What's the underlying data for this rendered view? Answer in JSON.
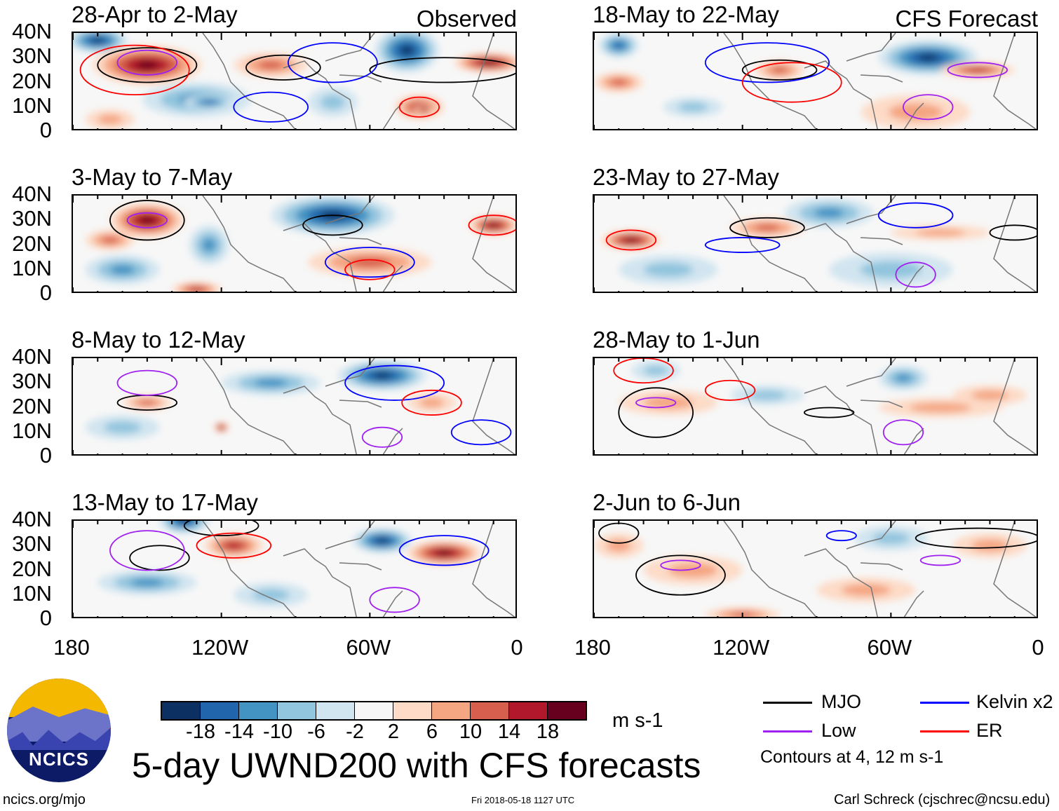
{
  "labels": {
    "observed": "Observed",
    "forecast": "CFS Forecast"
  },
  "y_ticks": [
    "40N",
    "30N",
    "20N",
    "10N",
    "0"
  ],
  "x_ticks": [
    "180",
    "120W",
    "60W",
    "0"
  ],
  "colorbar": {
    "colors": [
      "#0b3061",
      "#2166ac",
      "#4393c3",
      "#92c5de",
      "#d1e5f0",
      "#f7f7f7",
      "#fddbc7",
      "#f4a582",
      "#d6604d",
      "#b2182b",
      "#67001f"
    ],
    "labels": [
      "-18",
      "-14",
      "-10",
      "-6",
      "-2",
      "2",
      "6",
      "10",
      "14",
      "18"
    ],
    "units": "m s-1"
  },
  "legend": {
    "items": [
      {
        "label": "MJO",
        "color": "#000000"
      },
      {
        "label": "Kelvin x2",
        "color": "#0000ff"
      },
      {
        "label": "Low",
        "color": "#a020f0"
      },
      {
        "label": "ER",
        "color": "#ff0000"
      }
    ],
    "note": "Contours at 4, 12 m s-1"
  },
  "title": "5-day UWND200 with CFS forecasts",
  "logo_text": "NCICS",
  "footer": {
    "left": "ncics.org/mjo",
    "center": "Fri 2018-05-18 1127 UTC",
    "right": "Carl Schreck (cjschrec@ncsu.edu)"
  },
  "chart_data": {
    "type": "heatmap",
    "variable": "200-hPa zonal wind anomaly",
    "units": "m s-1",
    "xlim": [
      180,
      0
    ],
    "ylim": [
      0,
      40
    ],
    "panels": [
      {
        "title": "28-Apr to 2-May",
        "kind": "observed",
        "features": [
          [
            170,
            37,
            12,
            5,
            -18
          ],
          [
            150,
            27,
            22,
            8,
            18
          ],
          [
            130,
            13,
            22,
            7,
            -10
          ],
          [
            125,
            12,
            10,
            3,
            -14
          ],
          [
            100,
            27,
            15,
            5,
            10
          ],
          [
            45,
            33,
            13,
            9,
            -18
          ],
          [
            40,
            10,
            10,
            5,
            14
          ],
          [
            38,
            9,
            4,
            2,
            18
          ],
          [
            12,
            28,
            14,
            4,
            18
          ],
          [
            75,
            12,
            10,
            6,
            -6
          ],
          [
            165,
            5,
            10,
            4,
            6
          ]
        ],
        "contours": [
          [
            150,
            27,
            20,
            7,
            "MJO"
          ],
          [
            95,
            26,
            15,
            5,
            "MJO"
          ],
          [
            30,
            25,
            30,
            5,
            "MJO"
          ],
          [
            100,
            10,
            15,
            6,
            "Kelvin"
          ],
          [
            75,
            28,
            18,
            8,
            "Kelvin"
          ],
          [
            150,
            28,
            12,
            5,
            "Low"
          ],
          [
            40,
            10,
            8,
            4,
            "ER"
          ],
          [
            155,
            25,
            22,
            10,
            "ER"
          ]
        ]
      },
      {
        "title": "18-May to 22-May",
        "kind": "forecast",
        "features": [
          [
            170,
            35,
            8,
            5,
            -14
          ],
          [
            45,
            30,
            20,
            7,
            -18
          ],
          [
            25,
            25,
            15,
            3,
            14
          ],
          [
            105,
            25,
            10,
            4,
            10
          ],
          [
            170,
            20,
            10,
            4,
            10
          ],
          [
            50,
            8,
            22,
            7,
            6
          ],
          [
            140,
            10,
            12,
            4,
            -6
          ]
        ],
        "contours": [
          [
            105,
            25,
            15,
            4,
            "MJO"
          ],
          [
            25,
            25,
            12,
            3,
            "Low"
          ],
          [
            45,
            10,
            10,
            5,
            "Low"
          ],
          [
            110,
            28,
            25,
            8,
            "Kelvin"
          ],
          [
            100,
            20,
            20,
            8,
            "ER"
          ]
        ]
      },
      {
        "title": "3-May to 7-May",
        "kind": "observed",
        "features": [
          [
            150,
            30,
            15,
            7,
            18
          ],
          [
            165,
            22,
            10,
            4,
            10
          ],
          [
            160,
            10,
            15,
            6,
            -10
          ],
          [
            125,
            20,
            8,
            8,
            -10
          ],
          [
            75,
            32,
            25,
            8,
            -18
          ],
          [
            60,
            13,
            25,
            6,
            10
          ],
          [
            10,
            28,
            10,
            4,
            18
          ],
          [
            130,
            2,
            10,
            3,
            14
          ]
        ],
        "contours": [
          [
            150,
            30,
            15,
            8,
            "MJO"
          ],
          [
            75,
            28,
            12,
            4,
            "MJO"
          ],
          [
            150,
            30,
            8,
            3,
            "Low"
          ],
          [
            60,
            13,
            18,
            6,
            "Kelvin"
          ],
          [
            60,
            10,
            10,
            4,
            "ER"
          ],
          [
            10,
            28,
            10,
            4,
            "ER"
          ]
        ]
      },
      {
        "title": "23-May to 27-May",
        "kind": "forecast",
        "features": [
          [
            165,
            22,
            12,
            4,
            18
          ],
          [
            110,
            27,
            15,
            4,
            10
          ],
          [
            85,
            33,
            18,
            6,
            -10
          ],
          [
            60,
            10,
            25,
            7,
            -6
          ],
          [
            150,
            10,
            20,
            6,
            -6
          ],
          [
            40,
            25,
            20,
            3,
            6
          ]
        ],
        "contours": [
          [
            110,
            27,
            15,
            4,
            "MJO"
          ],
          [
            10,
            25,
            10,
            3,
            "MJO"
          ],
          [
            165,
            22,
            10,
            4,
            "ER"
          ],
          [
            50,
            32,
            15,
            5,
            "Kelvin"
          ],
          [
            120,
            20,
            15,
            3,
            "Kelvin"
          ],
          [
            50,
            8,
            8,
            5,
            "Low"
          ]
        ]
      },
      {
        "title": "8-May to 12-May",
        "kind": "observed",
        "features": [
          [
            55,
            33,
            18,
            6,
            -18
          ],
          [
            100,
            30,
            20,
            5,
            -10
          ],
          [
            150,
            22,
            10,
            3,
            10
          ],
          [
            35,
            22,
            10,
            4,
            6
          ],
          [
            160,
            12,
            15,
            5,
            -6
          ],
          [
            120,
            12,
            3,
            2,
            18
          ]
        ],
        "contours": [
          [
            150,
            22,
            12,
            3,
            "MJO"
          ],
          [
            50,
            30,
            20,
            7,
            "Kelvin"
          ],
          [
            150,
            30,
            12,
            5,
            "Low"
          ],
          [
            55,
            8,
            8,
            4,
            "Low"
          ],
          [
            35,
            22,
            12,
            5,
            "ER"
          ],
          [
            15,
            10,
            12,
            5,
            "Kelvin"
          ]
        ]
      },
      {
        "title": "28-May to 1-Jun",
        "kind": "forecast",
        "features": [
          [
            150,
            22,
            20,
            5,
            6
          ],
          [
            55,
            32,
            10,
            5,
            -10
          ],
          [
            40,
            20,
            25,
            4,
            6
          ],
          [
            110,
            25,
            15,
            4,
            -6
          ],
          [
            155,
            35,
            10,
            4,
            -6
          ],
          [
            20,
            25,
            15,
            4,
            6
          ]
        ],
        "contours": [
          [
            155,
            18,
            15,
            10,
            "MJO"
          ],
          [
            85,
            18,
            10,
            2,
            "MJO"
          ],
          [
            155,
            22,
            8,
            2,
            "Low"
          ],
          [
            55,
            10,
            8,
            5,
            "Low"
          ],
          [
            160,
            35,
            12,
            5,
            "ER"
          ],
          [
            125,
            27,
            10,
            4,
            "ER"
          ]
        ]
      },
      {
        "title": "13-May to 17-May",
        "kind": "observed",
        "features": [
          [
            135,
            40,
            10,
            5,
            -18
          ],
          [
            115,
            30,
            12,
            5,
            14
          ],
          [
            55,
            32,
            12,
            5,
            -18
          ],
          [
            30,
            27,
            15,
            5,
            18
          ],
          [
            150,
            15,
            20,
            5,
            -10
          ],
          [
            100,
            10,
            15,
            5,
            -6
          ]
        ],
        "contours": [
          [
            145,
            25,
            12,
            5,
            "MJO"
          ],
          [
            120,
            38,
            15,
            4,
            "MJO"
          ],
          [
            115,
            30,
            15,
            5,
            "ER"
          ],
          [
            30,
            28,
            18,
            6,
            "Kelvin"
          ],
          [
            150,
            28,
            15,
            8,
            "Low"
          ],
          [
            50,
            8,
            10,
            5,
            "Low"
          ]
        ]
      },
      {
        "title": "2-Jun to 6-Jun",
        "kind": "forecast",
        "features": [
          [
            170,
            30,
            10,
            5,
            6
          ],
          [
            140,
            20,
            20,
            6,
            6
          ],
          [
            60,
            33,
            15,
            5,
            -6
          ],
          [
            20,
            30,
            15,
            5,
            6
          ],
          [
            120,
            2,
            15,
            3,
            10
          ],
          [
            70,
            12,
            20,
            5,
            6
          ]
        ],
        "contours": [
          [
            145,
            18,
            18,
            8,
            "MJO"
          ],
          [
            25,
            33,
            25,
            4,
            "MJO"
          ],
          [
            170,
            35,
            8,
            4,
            "MJO"
          ],
          [
            145,
            22,
            8,
            2,
            "Low"
          ],
          [
            40,
            24,
            8,
            2,
            "Low"
          ],
          [
            80,
            34,
            6,
            2,
            "Kelvin"
          ]
        ]
      }
    ]
  }
}
